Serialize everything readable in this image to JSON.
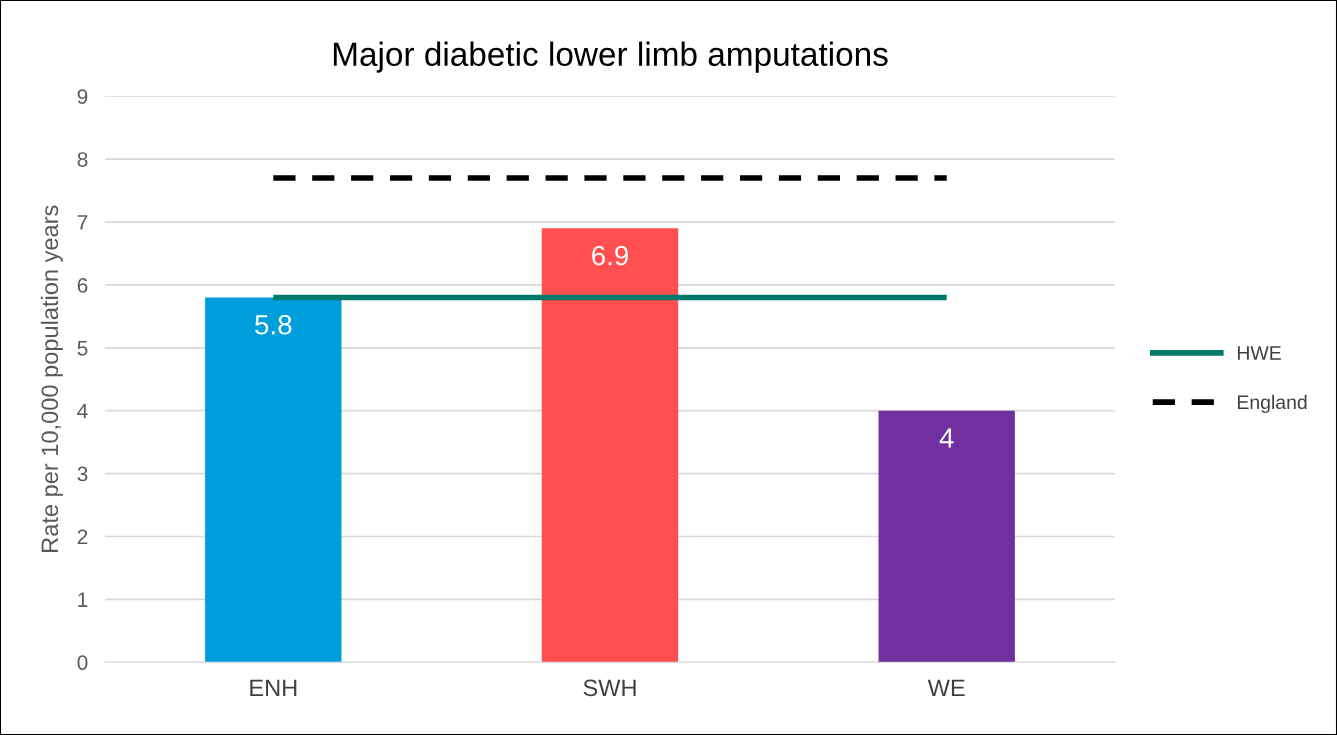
{
  "chart_data": {
    "type": "bar",
    "title": "Major diabetic lower limb amputations",
    "ylabel": "Rate per 10,000 population years",
    "categories": [
      "ENH",
      "SWH",
      "WE"
    ],
    "series": [
      {
        "colors": [
          "#009fdb",
          "#ff4f4f",
          "#7030a0"
        ],
        "values": [
          5.8,
          6.9,
          4
        ],
        "value_labels": [
          "5.8",
          "6.9",
          "4"
        ]
      },
      {
        "type": "line",
        "name": "HWE",
        "color": "#007a6a",
        "line_style": "solid",
        "values": [
          5.8,
          5.8,
          5.8
        ]
      },
      {
        "type": "line",
        "name": "England",
        "color": "#000000",
        "line_style": "dashed",
        "values": [
          7.7,
          7.7,
          7.7
        ]
      }
    ],
    "ylim": [
      0,
      9
    ],
    "yticks": [
      0,
      1,
      2,
      3,
      4,
      5,
      6,
      7,
      8,
      9
    ],
    "grid": "y",
    "legend": "right",
    "marker": "none"
  }
}
